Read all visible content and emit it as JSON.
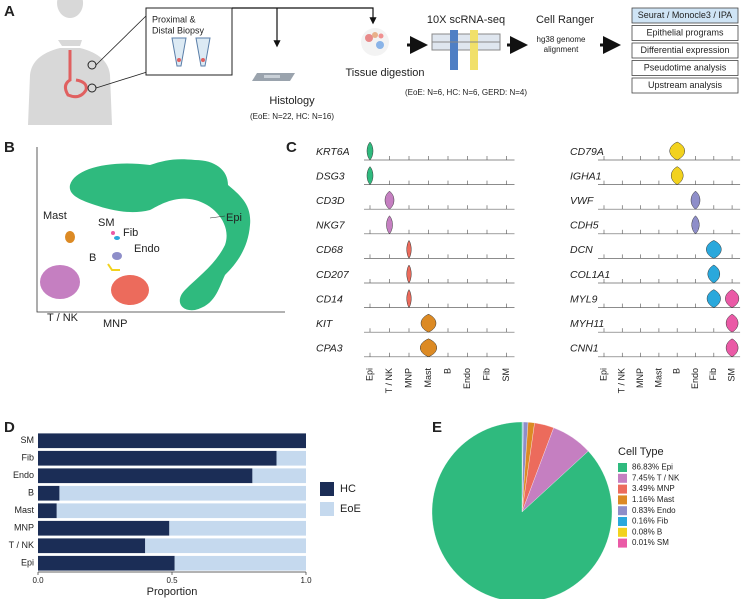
{
  "panel_labels": [
    "A",
    "B",
    "C",
    "D",
    "E"
  ],
  "workflow": {
    "biopsy": [
      "Proximal &",
      "Distal Biopsy"
    ],
    "histology": "Histology",
    "histology_n": "(EoE: N=22, HC: N=16)",
    "tissue_digestion": "Tissue digestion",
    "scrnaseq": "10X scRNA-seq",
    "scrnaseq_n": "(EoE: N=6, HC: N=6, GERD: N=4)",
    "cellranger": "Cell Ranger",
    "alignment": [
      "hg38 genome",
      "alignment"
    ],
    "analyses": [
      "Seurat / Monocle3 / IPA",
      "Epithelial programs",
      "Differential expression",
      "Pseudotime analysis",
      "Upstream analysis"
    ]
  },
  "umap": {
    "clusters": [
      "Epi",
      "SM",
      "Fib",
      "Endo",
      "Mast",
      "B",
      "T / NK",
      "MNP"
    ]
  },
  "violin": {
    "genes_left": [
      "KRT6A",
      "DSG3",
      "CD3D",
      "NKG7",
      "CD68",
      "CD207",
      "CD14",
      "KIT",
      "CPA3"
    ],
    "genes_right": [
      "CD79A",
      "IGHA1",
      "VWF",
      "CDH5",
      "DCN",
      "COL1A1",
      "MYL9",
      "MYH11",
      "CNN1"
    ],
    "cell_types": [
      "Epi",
      "T / NK",
      "MNP",
      "Mast",
      "B",
      "Endo",
      "Fib",
      "SM"
    ]
  },
  "chart_data": [
    {
      "type": "hbar_stacked",
      "xlabel": "Proportion",
      "categories": [
        "Epi",
        "T / NK",
        "MNP",
        "Mast",
        "B",
        "Endo",
        "Fib",
        "SM"
      ],
      "series": [
        {
          "name": "HC",
          "color": "#1b2d56",
          "values": [
            0.51,
            0.4,
            0.49,
            0.07,
            0.08,
            0.8,
            0.89,
            1.0
          ]
        },
        {
          "name": "EoE",
          "color": "#c5d9ee",
          "values": [
            0.49,
            0.6,
            0.51,
            0.93,
            0.92,
            0.2,
            0.11,
            0.0
          ]
        }
      ],
      "xlim": [
        0,
        1
      ],
      "xticks": [
        {
          "value": 0,
          "label": "0.0"
        },
        0.5,
        {
          "value": 1,
          "label": "1.0"
        }
      ]
    },
    {
      "type": "pie",
      "legend_title": "Cell Type",
      "labels": [
        "86.83% Epi",
        "7.45% T / NK",
        "3.49% MNP",
        "1.16% Mast",
        "0.83% Endo",
        "0.16% Fib",
        "0.08% B",
        "0.01% SM"
      ],
      "values": [
        86.83,
        7.45,
        3.49,
        1.16,
        0.83,
        0.16,
        0.08,
        0.01
      ],
      "colors": [
        "#2fba7e",
        "#c57fc1",
        "#ec6b5c",
        "#dc8a24",
        "#8e8ec9",
        "#2aa8dc",
        "#f2d21e",
        "#ea5aa6"
      ]
    }
  ]
}
